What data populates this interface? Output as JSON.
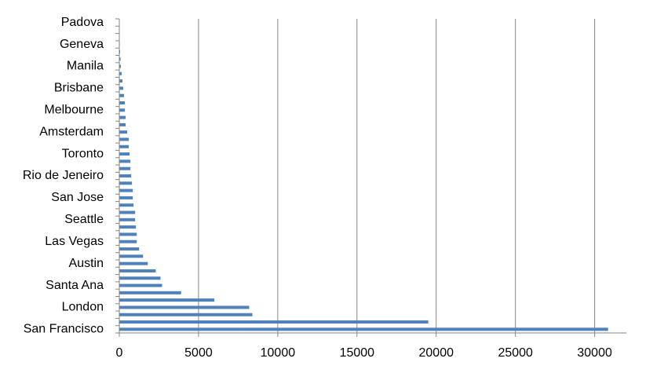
{
  "chart_data": {
    "type": "hbar",
    "color": "#4f81bd",
    "grid": true,
    "categories": [
      "San Francisco",
      null,
      null,
      "London",
      null,
      null,
      "Santa Ana",
      null,
      null,
      "Austin",
      null,
      null,
      "Las Vegas",
      null,
      null,
      "Seattle",
      null,
      null,
      "San Jose",
      null,
      null,
      "Rio de Jeneiro",
      null,
      null,
      "Toronto",
      null,
      null,
      "Amsterdam",
      null,
      null,
      "Melbourne",
      null,
      null,
      "Brisbane",
      null,
      null,
      "Manila",
      null,
      null,
      "Geneva",
      null,
      null,
      "Padova"
    ],
    "values": [
      30850,
      19500,
      8400,
      8200,
      6000,
      3900,
      2700,
      2600,
      2300,
      1800,
      1500,
      1250,
      1100,
      1100,
      1050,
      1000,
      1000,
      900,
      850,
      850,
      800,
      750,
      700,
      700,
      650,
      600,
      600,
      500,
      400,
      400,
      350,
      350,
      300,
      250,
      200,
      150,
      100,
      80,
      50,
      30,
      20,
      10,
      5
    ],
    "xlim": [
      0,
      32000
    ],
    "xticks": [
      0,
      5000,
      10000,
      15000,
      20000,
      25000,
      30000
    ]
  }
}
